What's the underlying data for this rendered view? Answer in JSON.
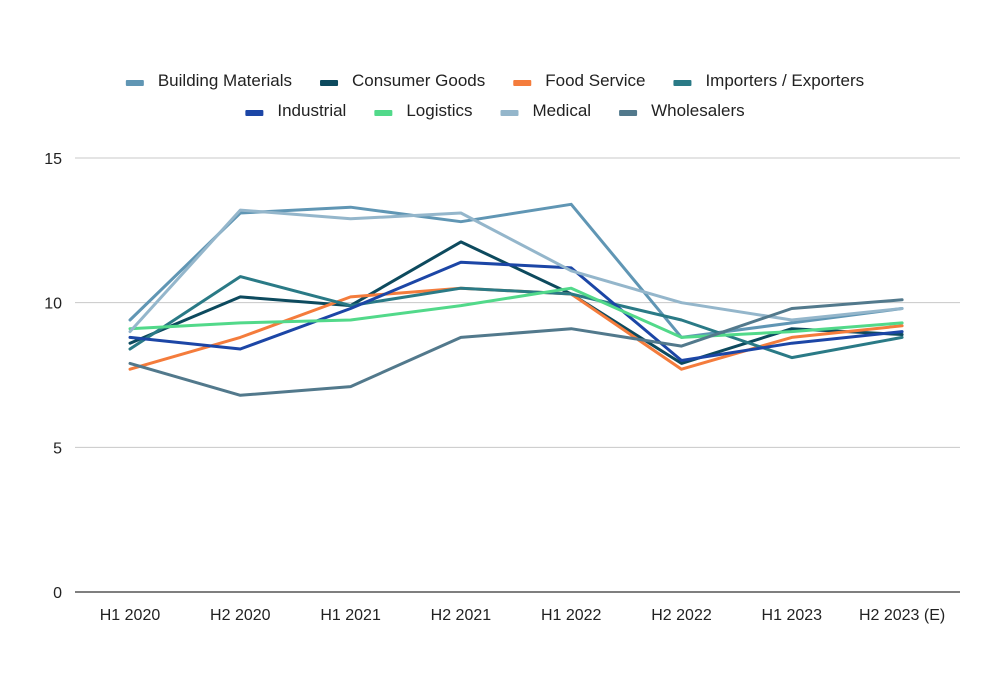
{
  "chart_data": {
    "type": "line",
    "title": "",
    "xlabel": "",
    "ylabel": "",
    "categories": [
      "H1 2020",
      "H2 2020",
      "H1 2021",
      "H2 2021",
      "H1 2022",
      "H2 2022",
      "H1 2023",
      "H2 2023 (E)"
    ],
    "ylim": [
      0,
      15
    ],
    "yticks": [
      0,
      5,
      10,
      15
    ],
    "grid": true,
    "legend_position": "top",
    "series": [
      {
        "name": "Building Materials",
        "color": "#6096b4",
        "values": [
          9.4,
          13.1,
          13.3,
          12.8,
          13.4,
          8.8,
          9.3,
          9.8
        ]
      },
      {
        "name": "Consumer Goods",
        "color": "#0d4a5e",
        "values": [
          8.6,
          10.2,
          9.9,
          12.1,
          10.3,
          7.9,
          9.1,
          8.9
        ]
      },
      {
        "name": "Food Service",
        "color": "#f47c3c",
        "values": [
          7.7,
          8.8,
          10.2,
          10.5,
          10.3,
          7.7,
          8.8,
          9.2
        ]
      },
      {
        "name": "Importers / Exporters",
        "color": "#2a7a86",
        "values": [
          8.4,
          10.9,
          9.9,
          10.5,
          10.3,
          9.4,
          8.1,
          8.8
        ]
      },
      {
        "name": "Industrial",
        "color": "#1c46a6",
        "values": [
          8.8,
          8.4,
          9.8,
          11.4,
          11.2,
          8.0,
          8.6,
          9.0
        ]
      },
      {
        "name": "Logistics",
        "color": "#52d98a",
        "values": [
          9.1,
          9.3,
          9.4,
          9.9,
          10.5,
          8.8,
          9.0,
          9.3
        ]
      },
      {
        "name": "Medical",
        "color": "#94b6cb",
        "values": [
          9.0,
          13.2,
          12.9,
          13.1,
          11.1,
          10.0,
          9.4,
          9.8
        ]
      },
      {
        "name": "Wholesalers",
        "color": "#52798c",
        "values": [
          7.9,
          6.8,
          7.1,
          8.8,
          9.1,
          8.5,
          9.8,
          10.1
        ]
      }
    ]
  }
}
